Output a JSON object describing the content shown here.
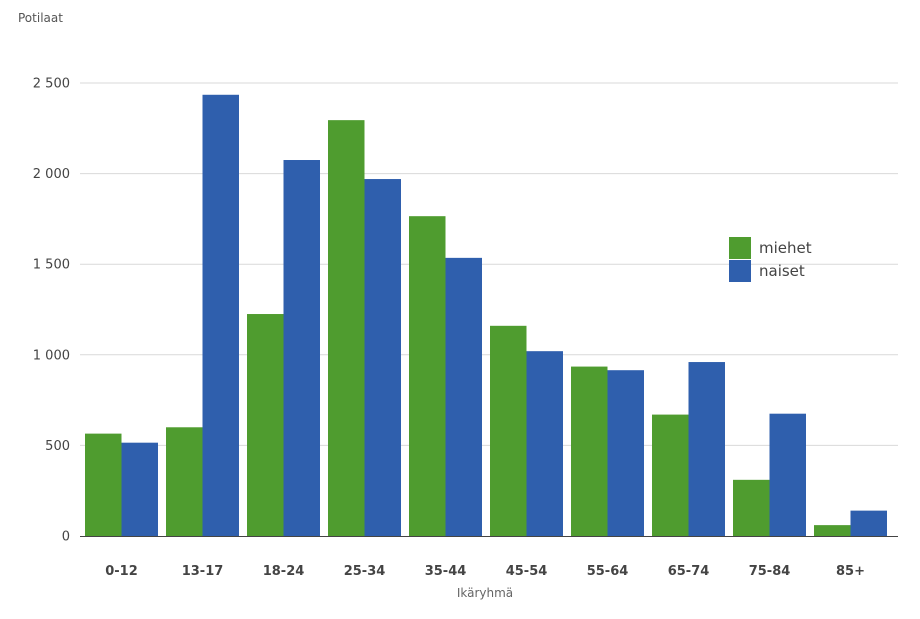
{
  "chart_data": {
    "type": "bar",
    "ylabel": "Potilaat",
    "xlabel": "Ikäryhmä",
    "categories": [
      "0-12",
      "13-17",
      "18-24",
      "25-34",
      "35-44",
      "45-54",
      "55-64",
      "65-74",
      "75-84",
      "85+"
    ],
    "series": [
      {
        "name": "miehet",
        "color": "#4f9c2f",
        "values": [
          565,
          600,
          1225,
          2295,
          1765,
          1160,
          935,
          670,
          310,
          60
        ]
      },
      {
        "name": "naiset",
        "color": "#2f5fad",
        "values": [
          515,
          2435,
          2075,
          1970,
          1535,
          1020,
          915,
          960,
          675,
          140
        ]
      }
    ],
    "ylim": [
      0,
      2500
    ],
    "yticks": [
      0,
      500,
      1000,
      1500,
      2000,
      2500
    ],
    "ytick_labels": [
      "0",
      "500",
      "1 000",
      "1 500",
      "2 000",
      "2 500"
    ],
    "grid": true,
    "legend_position": "right"
  }
}
